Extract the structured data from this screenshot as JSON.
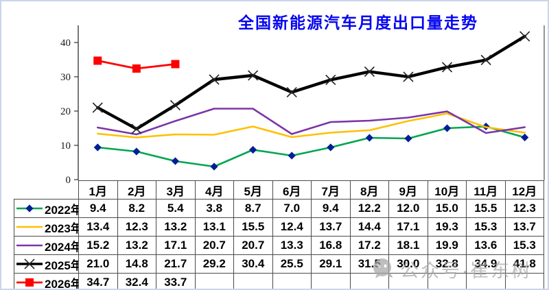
{
  "chart_data": {
    "type": "line",
    "title": "全国新能源汽车月度出口量走势",
    "title_color": "#0404f0",
    "categories": [
      "1月",
      "2月",
      "3月",
      "4月",
      "5月",
      "6月",
      "7月",
      "8月",
      "9月",
      "10月",
      "11月",
      "12月"
    ],
    "series": [
      {
        "name": "2022年",
        "color": "#00A64F",
        "marker": "diamond",
        "marker_color": "#001E96",
        "line_width": 2.6,
        "values": [
          9.4,
          8.2,
          5.4,
          3.8,
          8.7,
          7.0,
          9.4,
          12.2,
          12.0,
          15.0,
          15.5,
          12.3
        ]
      },
      {
        "name": "2023年",
        "color": "#FFC000",
        "marker": "none",
        "marker_color": "#FFC000",
        "line_width": 2.6,
        "values": [
          13.4,
          12.3,
          13.2,
          13.1,
          15.5,
          12.4,
          13.7,
          14.4,
          17.1,
          19.3,
          15.3,
          13.7
        ]
      },
      {
        "name": "2024年",
        "color": "#7B35A8",
        "marker": "none",
        "marker_color": "#7B35A8",
        "line_width": 2.6,
        "values": [
          15.2,
          13.2,
          17.1,
          20.7,
          20.7,
          13.3,
          16.8,
          17.2,
          18.1,
          19.9,
          13.6,
          15.3
        ]
      },
      {
        "name": "2025年",
        "color": "#000000",
        "marker": "x",
        "marker_color": "#262626",
        "line_width": 4.4,
        "values": [
          21.0,
          14.8,
          21.7,
          29.2,
          30.4,
          25.5,
          29.1,
          31.5,
          30.0,
          32.8,
          34.9,
          41.8
        ]
      },
      {
        "name": "2026年",
        "color": "#FF0000",
        "marker": "square",
        "marker_color": "#FF0000",
        "line_width": 2.8,
        "values": [
          34.7,
          32.4,
          33.7,
          null,
          null,
          null,
          null,
          null,
          null,
          null,
          null,
          null
        ]
      }
    ],
    "yticks": [
      0,
      10,
      20,
      30,
      40
    ],
    "ylim": [
      0,
      44
    ],
    "grid": false,
    "legend_position": "table-left-column",
    "value_decimals": 1
  },
  "watermark": {
    "icon": "wechat-icon",
    "text": "公众号·崔东树"
  }
}
